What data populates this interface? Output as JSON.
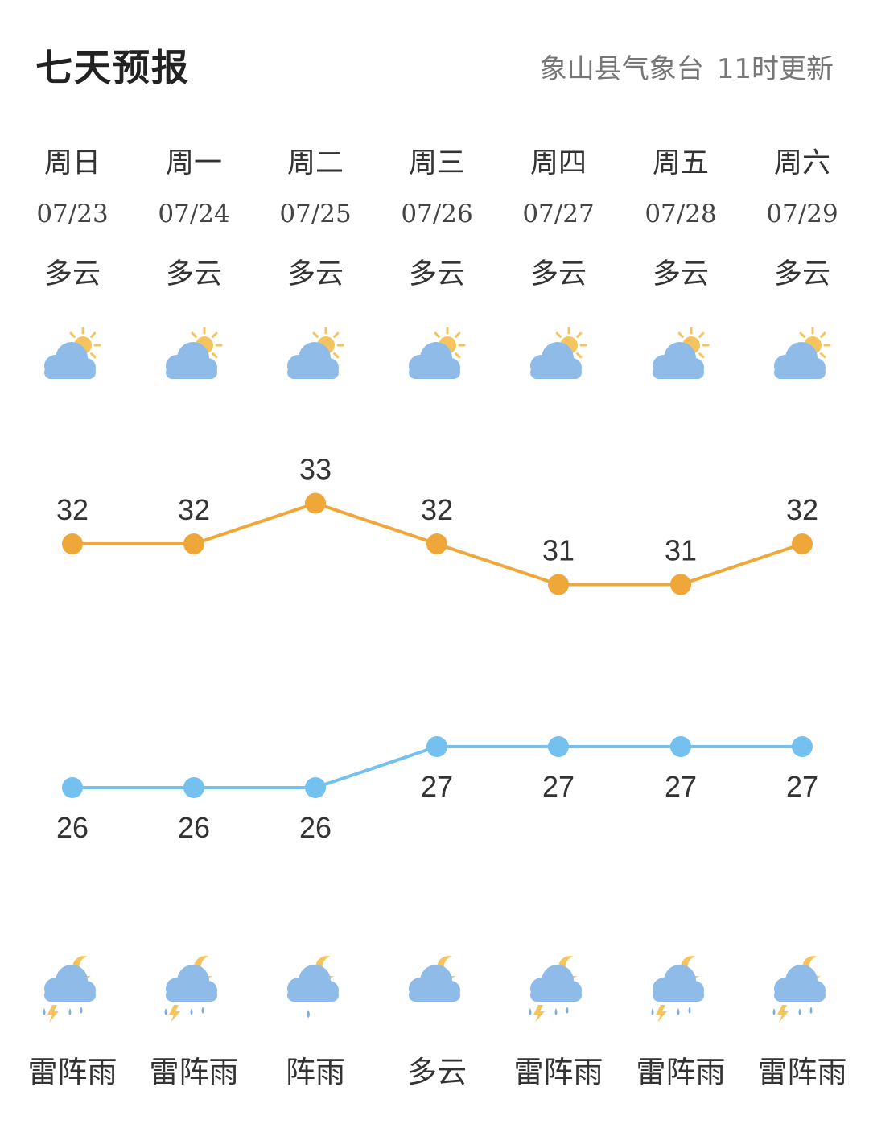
{
  "header": {
    "title": "七天预报",
    "source": "象山县气象台",
    "update": "11时更新"
  },
  "days": [
    {
      "dow": "周日",
      "date": "07/23",
      "day_cond": "多云",
      "day_icon": "partly-cloudy-day",
      "high": 32,
      "low": 26,
      "night_icon": "thunderstorm-night",
      "night_cond": "雷阵雨"
    },
    {
      "dow": "周一",
      "date": "07/24",
      "day_cond": "多云",
      "day_icon": "partly-cloudy-day",
      "high": 32,
      "low": 26,
      "night_icon": "thunderstorm-night",
      "night_cond": "雷阵雨"
    },
    {
      "dow": "周二",
      "date": "07/25",
      "day_cond": "多云",
      "day_icon": "partly-cloudy-day",
      "high": 33,
      "low": 26,
      "night_icon": "shower-night",
      "night_cond": "阵雨"
    },
    {
      "dow": "周三",
      "date": "07/26",
      "day_cond": "多云",
      "day_icon": "partly-cloudy-day",
      "high": 32,
      "low": 27,
      "night_icon": "partly-cloudy-night",
      "night_cond": "多云"
    },
    {
      "dow": "周四",
      "date": "07/27",
      "day_cond": "多云",
      "day_icon": "partly-cloudy-day",
      "high": 31,
      "low": 27,
      "night_icon": "thunderstorm-night",
      "night_cond": "雷阵雨"
    },
    {
      "dow": "周五",
      "date": "07/28",
      "day_cond": "多云",
      "day_icon": "partly-cloudy-day",
      "high": 31,
      "low": 27,
      "night_icon": "thunderstorm-night",
      "night_cond": "雷阵雨"
    },
    {
      "dow": "周六",
      "date": "07/29",
      "day_cond": "多云",
      "day_icon": "partly-cloudy-day",
      "high": 32,
      "low": 27,
      "night_icon": "thunderstorm-night",
      "night_cond": "雷阵雨"
    }
  ],
  "chart_data": {
    "type": "line",
    "categories": [
      "07/23",
      "07/24",
      "07/25",
      "07/26",
      "07/27",
      "07/28",
      "07/29"
    ],
    "series": [
      {
        "values": [
          32,
          32,
          33,
          32,
          31,
          31,
          32
        ],
        "color": "#f0a73a"
      },
      {
        "values": [
          26,
          26,
          26,
          27,
          27,
          27,
          27
        ],
        "color": "#74c0ef"
      }
    ]
  },
  "colors": {
    "high": "#f0a73a",
    "low": "#74c0ef",
    "cloud": "#8ebbe8",
    "sun": "#f5c45e",
    "rain": "#7aaee0",
    "bolt": "#f5c45e"
  }
}
